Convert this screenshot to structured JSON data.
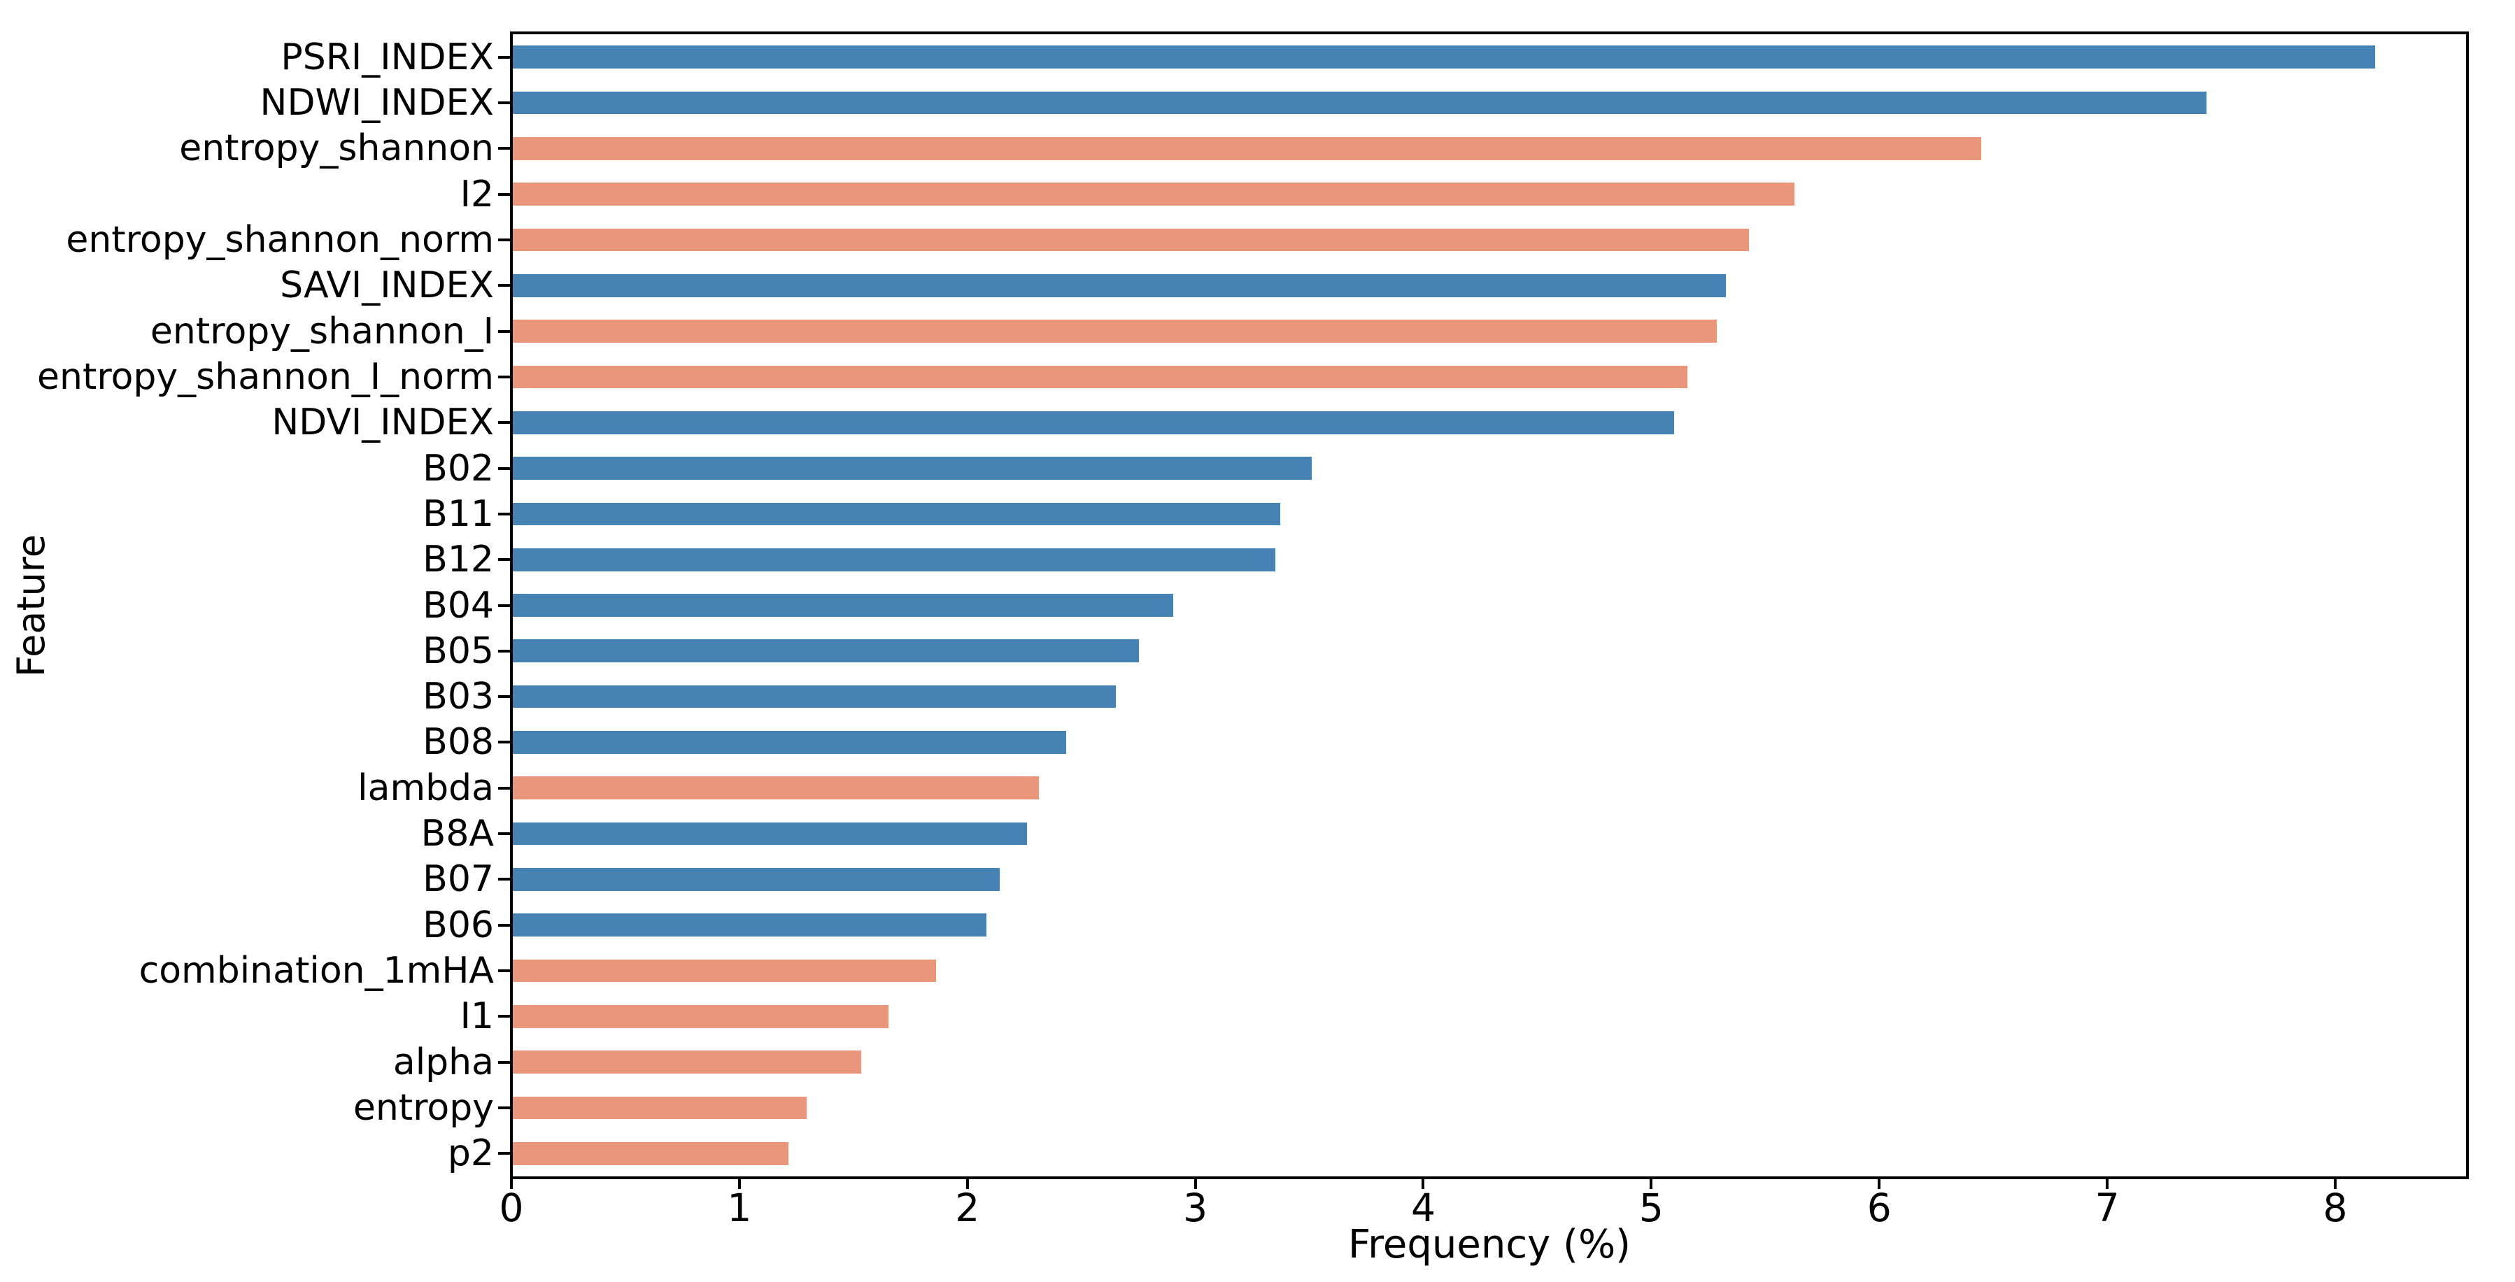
{
  "chart_data": {
    "type": "bar",
    "orientation": "horizontal",
    "title": "",
    "xlabel": "Frequency (%)",
    "ylabel": "Feature",
    "grid": false,
    "legend": "none",
    "xlim": [
      0,
      8.58
    ],
    "x_tick_values": [
      0,
      1,
      2,
      3,
      4,
      5,
      6,
      7,
      8
    ],
    "x_tick_labels": [
      "0",
      "1",
      "2",
      "3",
      "4",
      "5",
      "6",
      "7",
      "8"
    ],
    "palette": {
      "blue": "#4682B4",
      "salmon": "#E9967A"
    },
    "categories": [
      "PSRI_INDEX",
      "NDWI_INDEX",
      "entropy_shannon",
      "I2",
      "entropy_shannon_norm",
      "SAVI_INDEX",
      "entropy_shannon_I",
      "entropy_shannon_I_norm",
      "NDVI_INDEX",
      "B02",
      "B11",
      "B12",
      "B04",
      "B05",
      "B03",
      "B08",
      "lambda",
      "B8A",
      "B07",
      "B06",
      "combination_1mHA",
      "I1",
      "alpha",
      "entropy",
      "p2"
    ],
    "values": [
      8.18,
      7.44,
      6.45,
      5.63,
      5.43,
      5.33,
      5.29,
      5.16,
      5.1,
      3.51,
      3.37,
      3.35,
      2.9,
      2.75,
      2.65,
      2.43,
      2.31,
      2.26,
      2.14,
      2.08,
      1.86,
      1.65,
      1.53,
      1.29,
      1.21
    ],
    "colors": [
      "blue",
      "blue",
      "salmon",
      "salmon",
      "salmon",
      "blue",
      "salmon",
      "salmon",
      "blue",
      "blue",
      "blue",
      "blue",
      "blue",
      "blue",
      "blue",
      "blue",
      "salmon",
      "blue",
      "blue",
      "blue",
      "salmon",
      "salmon",
      "salmon",
      "salmon",
      "salmon"
    ]
  }
}
